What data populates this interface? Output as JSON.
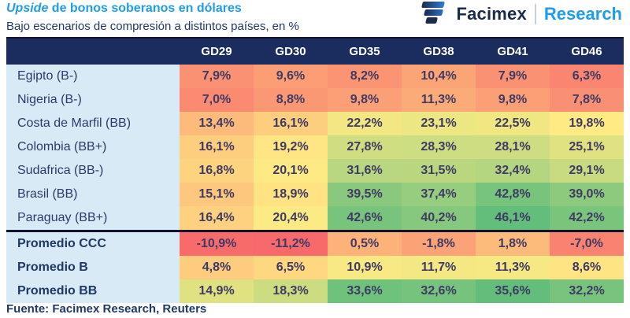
{
  "header": {
    "title_em": "Upside",
    "title_rest": " de bonos soberanos en dólares",
    "subtitle": "Bajo escenarios de compresión a distintos países, en %"
  },
  "brand": {
    "name": "Facimex",
    "unit": "Research"
  },
  "chart_data": {
    "type": "heatmap",
    "title": "Upside de bonos soberanos en dólares",
    "subtitle": "Bajo escenarios de compresión a distintos países, en %",
    "columns": [
      "GD29",
      "GD30",
      "GD35",
      "GD38",
      "GD41",
      "GD46"
    ],
    "number_format": {
      "decimals": 1,
      "decimal_separator": ",",
      "suffix": "%"
    },
    "rows": [
      {
        "label": "Egipto (B-)",
        "group": "country",
        "values": [
          7.9,
          9.6,
          8.2,
          10.4,
          7.9,
          6.3
        ],
        "colors": [
          "#FA9173",
          "#FB9E75",
          "#FA9473",
          "#FBA476",
          "#FA9173",
          "#FA8570"
        ]
      },
      {
        "label": "Nigeria (B-)",
        "group": "country",
        "values": [
          7.0,
          8.8,
          9.8,
          11.3,
          9.8,
          7.8
        ],
        "colors": [
          "#FA8B71",
          "#FA9874",
          "#FB9F76",
          "#FBAB78",
          "#FB9F76",
          "#FA9073"
        ]
      },
      {
        "label": "Costa de Marfil (BB)",
        "group": "country",
        "values": [
          13.4,
          16.1,
          22.2,
          23.1,
          22.5,
          19.8
        ],
        "colors": [
          "#FCBA7B",
          "#FDCE7E",
          "#F2E783",
          "#ECE683",
          "#F0E783",
          "#FFEA84"
        ]
      },
      {
        "label": "Colombia (BB+)",
        "group": "country",
        "values": [
          16.1,
          19.2,
          27.8,
          28.3,
          28.1,
          25.1
        ],
        "colors": [
          "#FDCE7E",
          "#FFE583",
          "#D0DD81",
          "#CDDD81",
          "#CEDD81",
          "#E0E282"
        ]
      },
      {
        "label": "Sudafrica (BB-)",
        "group": "country",
        "values": [
          16.8,
          20.1,
          31.6,
          31.5,
          32.4,
          29.1
        ],
        "colors": [
          "#FED380",
          "#FEEA84",
          "#B9D780",
          "#BAD780",
          "#B5D680",
          "#C8DB81"
        ]
      },
      {
        "label": "Brasil (BB)",
        "group": "country",
        "values": [
          15.1,
          18.9,
          39.5,
          37.4,
          42.8,
          39.0
        ],
        "colors": [
          "#FDC77D",
          "#FFE382",
          "#8AC97D",
          "#97CD7E",
          "#77C47C",
          "#8DCA7D"
        ]
      },
      {
        "label": "Paraguay (BB+)",
        "group": "country",
        "values": [
          16.4,
          20.4,
          42.6,
          40.2,
          46.1,
          42.2
        ],
        "colors": [
          "#FDD17F",
          "#FCEA84",
          "#78C47C",
          "#86C87D",
          "#63BE7B",
          "#7AC57C"
        ]
      },
      {
        "label": "Promedio CCC",
        "group": "average",
        "values": [
          -10.9,
          -11.2,
          0.5,
          -1.8,
          1.8,
          -7.0
        ],
        "colors": [
          "#F86B6B",
          "#F8696B",
          "#FCB279",
          "#FBA376",
          "#FCBA7B",
          "#F98370"
        ]
      },
      {
        "label": "Promedio B",
        "group": "average",
        "values": [
          4.8,
          6.5,
          10.9,
          11.7,
          11.3,
          8.6
        ],
        "colors": [
          "#FDCC7E",
          "#FED780",
          "#F8E984",
          "#F3E883",
          "#F6E883",
          "#FFE483"
        ]
      },
      {
        "label": "Promedio BB",
        "group": "average",
        "values": [
          14.9,
          18.3,
          33.6,
          32.6,
          35.6,
          32.2
        ],
        "colors": [
          "#E0E282",
          "#CBDC81",
          "#6FC27C",
          "#75C37C",
          "#63BE7B",
          "#78C47C"
        ]
      }
    ],
    "color_scale": {
      "low": "#F8696B",
      "mid": "#FFEB84",
      "high": "#63BE7B"
    },
    "legend_position": "none",
    "source": "Fuente: Facimex Research, Reuters"
  },
  "footer": {
    "source": "Fuente: Facimex Research, Reuters"
  },
  "theme": {
    "title_blue": "#1E9CEE",
    "navy": "#1F3864",
    "brand_navy": "#1B2B4C",
    "divider": "#C8D1DB",
    "header_bg": "#1B2C5E",
    "header_text": "#FFFFFF",
    "label_bg": "#D9EAF7",
    "label_text": "#2C3A6B",
    "value_text": "#3F3A64",
    "block_border": "#12122C"
  }
}
